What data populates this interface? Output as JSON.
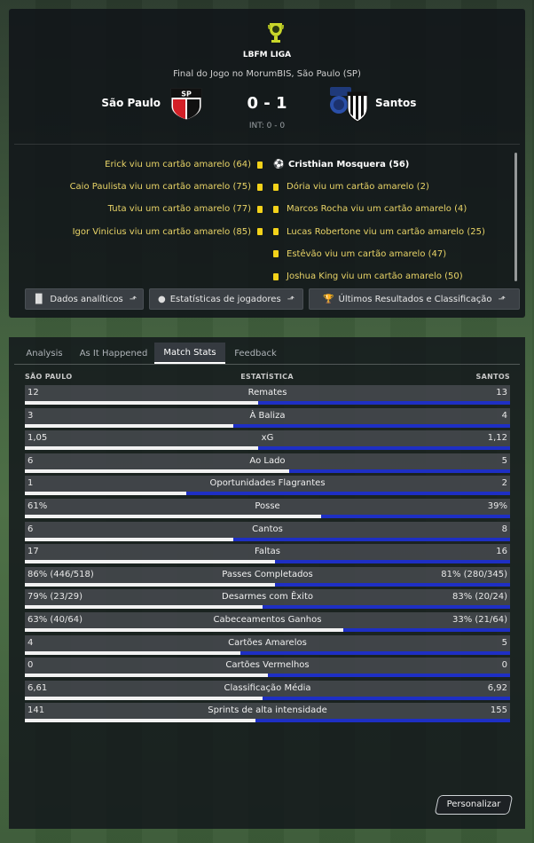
{
  "header": {
    "league_name": "LBFM LIGA",
    "match_info": "Final do Jogo no MorumBIS, São Paulo (SP)",
    "home_team": "São Paulo",
    "away_team": "Santos",
    "score": "0 - 1",
    "half_time": "INT: 0 - 0"
  },
  "events": {
    "home": [
      "Erick viu um cartão amarelo (64)",
      "Caio Paulista viu um cartão amarelo (75)",
      "Tuta viu um cartão amarelo (77)",
      "Igor Vinicius viu um cartão amarelo (85)"
    ],
    "away_goal": "Cristhian Mosquera (56)",
    "away": [
      "Dória viu um cartão amarelo (2)",
      "Marcos Rocha viu um cartão amarelo (4)",
      "Lucas Robertone viu um cartão amarelo (25)",
      "Estêvão viu um cartão amarelo (47)",
      "Joshua King viu um cartão amarelo (50)"
    ]
  },
  "top_buttons": {
    "analytics": "Dados analíticos",
    "player_stats": "Estatísticas de jogadores",
    "results": "Últimos Resultados e Classificação"
  },
  "tabs": [
    "Analysis",
    "As It Happened",
    "Match Stats",
    "Feedback"
  ],
  "active_tab": "Match Stats",
  "columns": {
    "home": "SÃO PAULO",
    "stat": "ESTATÍSTICA",
    "away": "SANTOS"
  },
  "stats": [
    {
      "label": "Remates",
      "home": "12",
      "away": "13",
      "home_share": 0.48
    },
    {
      "label": "À Baliza",
      "home": "3",
      "away": "4",
      "home_share": 0.43
    },
    {
      "label": "xG",
      "home": "1,05",
      "away": "1,12",
      "home_share": 0.48
    },
    {
      "label": "Ao Lado",
      "home": "6",
      "away": "5",
      "home_share": 0.545
    },
    {
      "label": "Oportunidades Flagrantes",
      "home": "1",
      "away": "2",
      "home_share": 0.333
    },
    {
      "label": "Posse",
      "home": "61%",
      "away": "39%",
      "home_share": 0.61
    },
    {
      "label": "Cantos",
      "home": "6",
      "away": "8",
      "home_share": 0.43
    },
    {
      "label": "Faltas",
      "home": "17",
      "away": "16",
      "home_share": 0.515
    },
    {
      "label": "Passes Completados",
      "home": "86% (446/518)",
      "away": "81% (280/345)",
      "home_share": 0.515
    },
    {
      "label": "Desarmes com Êxito",
      "home": "79% (23/29)",
      "away": "83% (20/24)",
      "home_share": 0.49
    },
    {
      "label": "Cabeceamentos Ganhos",
      "home": "63% (40/64)",
      "away": "33% (21/64)",
      "home_share": 0.656
    },
    {
      "label": "Cartões Amarelos",
      "home": "4",
      "away": "5",
      "home_share": 0.444
    },
    {
      "label": "Cartões Vermelhos",
      "home": "0",
      "away": "0",
      "home_share": 0.5
    },
    {
      "label": "Classificação Média",
      "home": "6,61",
      "away": "6,92",
      "home_share": 0.49
    },
    {
      "label": "Sprints de alta intensidade",
      "home": "141",
      "away": "155",
      "home_share": 0.476
    }
  ],
  "customize_label": "Personalizar",
  "colors": {
    "home_bar": "#f2f2f2",
    "away_bar": "#1e2fc4",
    "card_yellow": "#f3d21a"
  }
}
